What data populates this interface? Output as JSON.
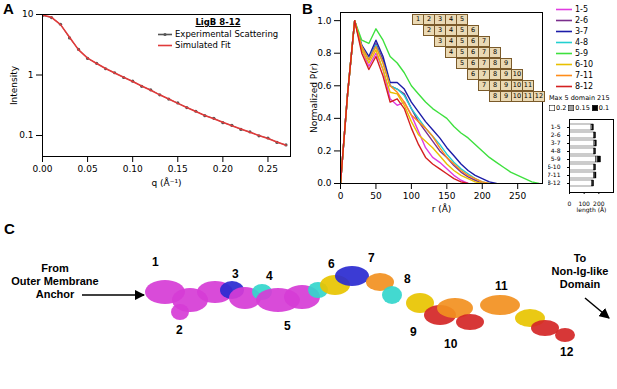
{
  "chart_data": [
    {
      "type": "line",
      "title": "A",
      "subtitle": "LigB 8-12",
      "x_label": "q (Å⁻¹)",
      "y_label": "Intensity",
      "x": [
        0,
        0.01,
        0.02,
        0.03,
        0.04,
        0.05,
        0.06,
        0.07,
        0.08,
        0.09,
        0.1,
        0.11,
        0.12,
        0.13,
        0.14,
        0.15,
        0.16,
        0.17,
        0.18,
        0.19,
        0.2,
        0.21,
        0.22,
        0.23,
        0.24,
        0.25,
        0.26,
        0.27
      ],
      "series": [
        {
          "name": "Experimental Scattering",
          "color": "#555555",
          "type": "scatter",
          "marker": "circle",
          "values": [
            9.6,
            8.9,
            6.9,
            4.1,
            2.65,
            1.88,
            1.56,
            1.27,
            1.09,
            0.91,
            0.79,
            0.65,
            0.57,
            0.47,
            0.4,
            0.345,
            0.29,
            0.252,
            0.213,
            0.192,
            0.163,
            0.147,
            0.126,
            0.115,
            0.099,
            0.091,
            0.077,
            0.07
          ]
        },
        {
          "name": "Simulated Fit",
          "color": "#e03a3a",
          "type": "line",
          "values": [
            9.8,
            9.0,
            6.8,
            4.2,
            2.6,
            1.9,
            1.55,
            1.28,
            1.08,
            0.92,
            0.78,
            0.66,
            0.56,
            0.47,
            0.4,
            0.34,
            0.29,
            0.25,
            0.215,
            0.19,
            0.165,
            0.145,
            0.128,
            0.113,
            0.1,
            0.089,
            0.078,
            0.069
          ]
        }
      ],
      "xlim": [
        0,
        0.275
      ],
      "ylim": [
        0.045,
        10
      ],
      "xticks": [
        {
          "value": 0,
          "label": "0.00"
        },
        {
          "value": 0.05,
          "label": "0.05"
        },
        {
          "value": 0.1,
          "label": "0.10"
        },
        {
          "value": 0.15,
          "label": "0.15"
        },
        {
          "value": 0.2,
          "label": "0.20"
        },
        {
          "value": 0.25,
          "label": "0.25"
        }
      ],
      "yticks": [
        0.1,
        1,
        10
      ],
      "log": "y",
      "legend": "top-right"
    },
    {
      "type": "line",
      "title": "B",
      "x_label": "r (Å)",
      "y_label": "Normalized P(r)",
      "x": [
        0,
        10,
        20,
        30,
        40,
        50,
        60,
        70,
        80,
        90,
        100,
        110,
        120,
        130,
        140,
        150,
        160,
        170,
        180,
        190,
        200,
        210,
        220,
        230,
        240,
        250,
        260,
        270,
        280
      ],
      "series": [
        {
          "name": "1-5",
          "color": "#e03ce0",
          "values": [
            0,
            0.55,
            1.0,
            0.82,
            0.72,
            0.8,
            0.7,
            0.52,
            0.48,
            0.5,
            0.42,
            0.32,
            0.22,
            0.16,
            0.13,
            0.09,
            0.05,
            0.02,
            0.0,
            null,
            null,
            null,
            null,
            null,
            null,
            null,
            null,
            null,
            null
          ]
        },
        {
          "name": "2-6",
          "color": "#7a2e8c",
          "values": [
            0,
            0.55,
            1.0,
            0.84,
            0.76,
            0.86,
            0.76,
            0.6,
            0.58,
            0.55,
            0.46,
            0.38,
            0.32,
            0.26,
            0.2,
            0.16,
            0.11,
            0.07,
            0.04,
            0.02,
            0.0,
            null,
            null,
            null,
            null,
            null,
            null,
            null,
            null
          ]
        },
        {
          "name": "3-7",
          "color": "#1c1ca8",
          "values": [
            0,
            0.55,
            1.0,
            0.85,
            0.78,
            0.88,
            0.78,
            0.62,
            0.62,
            0.58,
            0.5,
            0.44,
            0.38,
            0.33,
            0.28,
            0.22,
            0.17,
            0.12,
            0.08,
            0.05,
            0.03,
            0.01,
            0.0,
            null,
            null,
            null,
            null,
            null,
            null
          ]
        },
        {
          "name": "4-8",
          "color": "#22d0d0",
          "values": [
            0,
            0.55,
            1.0,
            0.84,
            0.76,
            0.85,
            0.74,
            0.6,
            0.58,
            0.54,
            0.46,
            0.4,
            0.34,
            0.29,
            0.24,
            0.18,
            0.13,
            0.09,
            0.06,
            0.03,
            0.01,
            0.0,
            null,
            null,
            null,
            null,
            null,
            null,
            null
          ]
        },
        {
          "name": "5-9",
          "color": "#3ee03e",
          "values": [
            0,
            0.55,
            1.0,
            0.88,
            0.86,
            0.95,
            0.88,
            0.78,
            0.74,
            0.68,
            0.6,
            0.55,
            0.5,
            0.46,
            0.43,
            0.4,
            0.35,
            0.31,
            0.28,
            0.24,
            0.2,
            0.16,
            0.13,
            0.1,
            0.07,
            0.05,
            0.03,
            0.01,
            0.0
          ]
        },
        {
          "name": "6-10",
          "color": "#e8c000",
          "values": [
            0,
            0.55,
            1.0,
            0.82,
            0.74,
            0.82,
            0.7,
            0.56,
            0.55,
            0.48,
            0.38,
            0.3,
            0.26,
            0.22,
            0.17,
            0.12,
            0.08,
            0.05,
            0.03,
            0.01,
            0.0,
            null,
            null,
            null,
            null,
            null,
            null,
            null,
            null
          ]
        },
        {
          "name": "7-11",
          "color": "#ff8c1a",
          "values": [
            0,
            0.55,
            1.0,
            0.84,
            0.76,
            0.84,
            0.74,
            0.6,
            0.56,
            0.5,
            0.42,
            0.38,
            0.34,
            0.29,
            0.22,
            0.16,
            0.12,
            0.08,
            0.05,
            0.03,
            0.01,
            0.0,
            null,
            null,
            null,
            null,
            null,
            null,
            null
          ]
        },
        {
          "name": "8-12",
          "color": "#d42020",
          "values": [
            0,
            0.55,
            1.0,
            0.8,
            0.7,
            0.78,
            0.66,
            0.5,
            0.52,
            0.46,
            0.34,
            0.24,
            0.16,
            0.12,
            0.09,
            0.06,
            0.03,
            0.01,
            0.0,
            null,
            null,
            null,
            null,
            null,
            null,
            null,
            null,
            null,
            null
          ]
        }
      ],
      "xlim": [
        0,
        285
      ],
      "ylim": [
        0,
        1.05
      ],
      "xticks": [
        0,
        50,
        100,
        150,
        200,
        250
      ],
      "yticks": [
        {
          "value": 0,
          "label": "0.0"
        },
        {
          "value": 0.2,
          "label": "0.2"
        },
        {
          "value": 0.4,
          "label": "0.4"
        },
        {
          "value": 0.6,
          "label": "0.6"
        },
        {
          "value": 0.8,
          "label": "0.8"
        },
        {
          "value": 1.0,
          "label": "1.0"
        }
      ],
      "legend": "right",
      "domain_boxes": [
        [
          1,
          2,
          3,
          4,
          5
        ],
        [
          2,
          3,
          4,
          5,
          6
        ],
        [
          3,
          4,
          5,
          6,
          7
        ],
        [
          4,
          5,
          6,
          7,
          8
        ],
        [
          5,
          6,
          7,
          8,
          9
        ],
        [
          6,
          7,
          8,
          9,
          10
        ],
        [
          7,
          8,
          9,
          10,
          11
        ],
        [
          8,
          9,
          10,
          11,
          12
        ]
      ]
    },
    {
      "type": "bar",
      "orientation": "horizontal",
      "stacked": true,
      "categories": [
        "1-5",
        "2-6",
        "3-7",
        "4-8",
        "5-9",
        "6-10",
        "7-11",
        "8-12"
      ],
      "series": [
        {
          "name": "0.2",
          "color": "#ffffff",
          "values": [
            150,
            165,
            170,
            165,
            180,
            165,
            168,
            152
          ]
        },
        {
          "name": "0.15",
          "color": "#a0a0a0",
          "values": [
            8,
            8,
            8,
            8,
            15,
            8,
            8,
            8
          ]
        },
        {
          "name": "0.1",
          "color": "#000000",
          "values": [
            8,
            8,
            8,
            8,
            20,
            8,
            8,
            8
          ]
        }
      ],
      "x_label": "length (Å)",
      "xlim": [
        0,
        300
      ],
      "xticks": [
        0,
        100,
        200
      ],
      "annotations": [
        "Max",
        "5 domain",
        "215"
      ],
      "legend": "top"
    }
  ],
  "panel_c": {
    "title": "C",
    "left_text": [
      "From",
      "Outer Membrane",
      "Anchor"
    ],
    "right_text": [
      "To",
      "Non-Ig-like",
      "Domain"
    ],
    "domain_labels": [
      "1",
      "2",
      "3",
      "4",
      "5",
      "6",
      "7",
      "8",
      "9",
      "10",
      "11",
      "12"
    ]
  }
}
